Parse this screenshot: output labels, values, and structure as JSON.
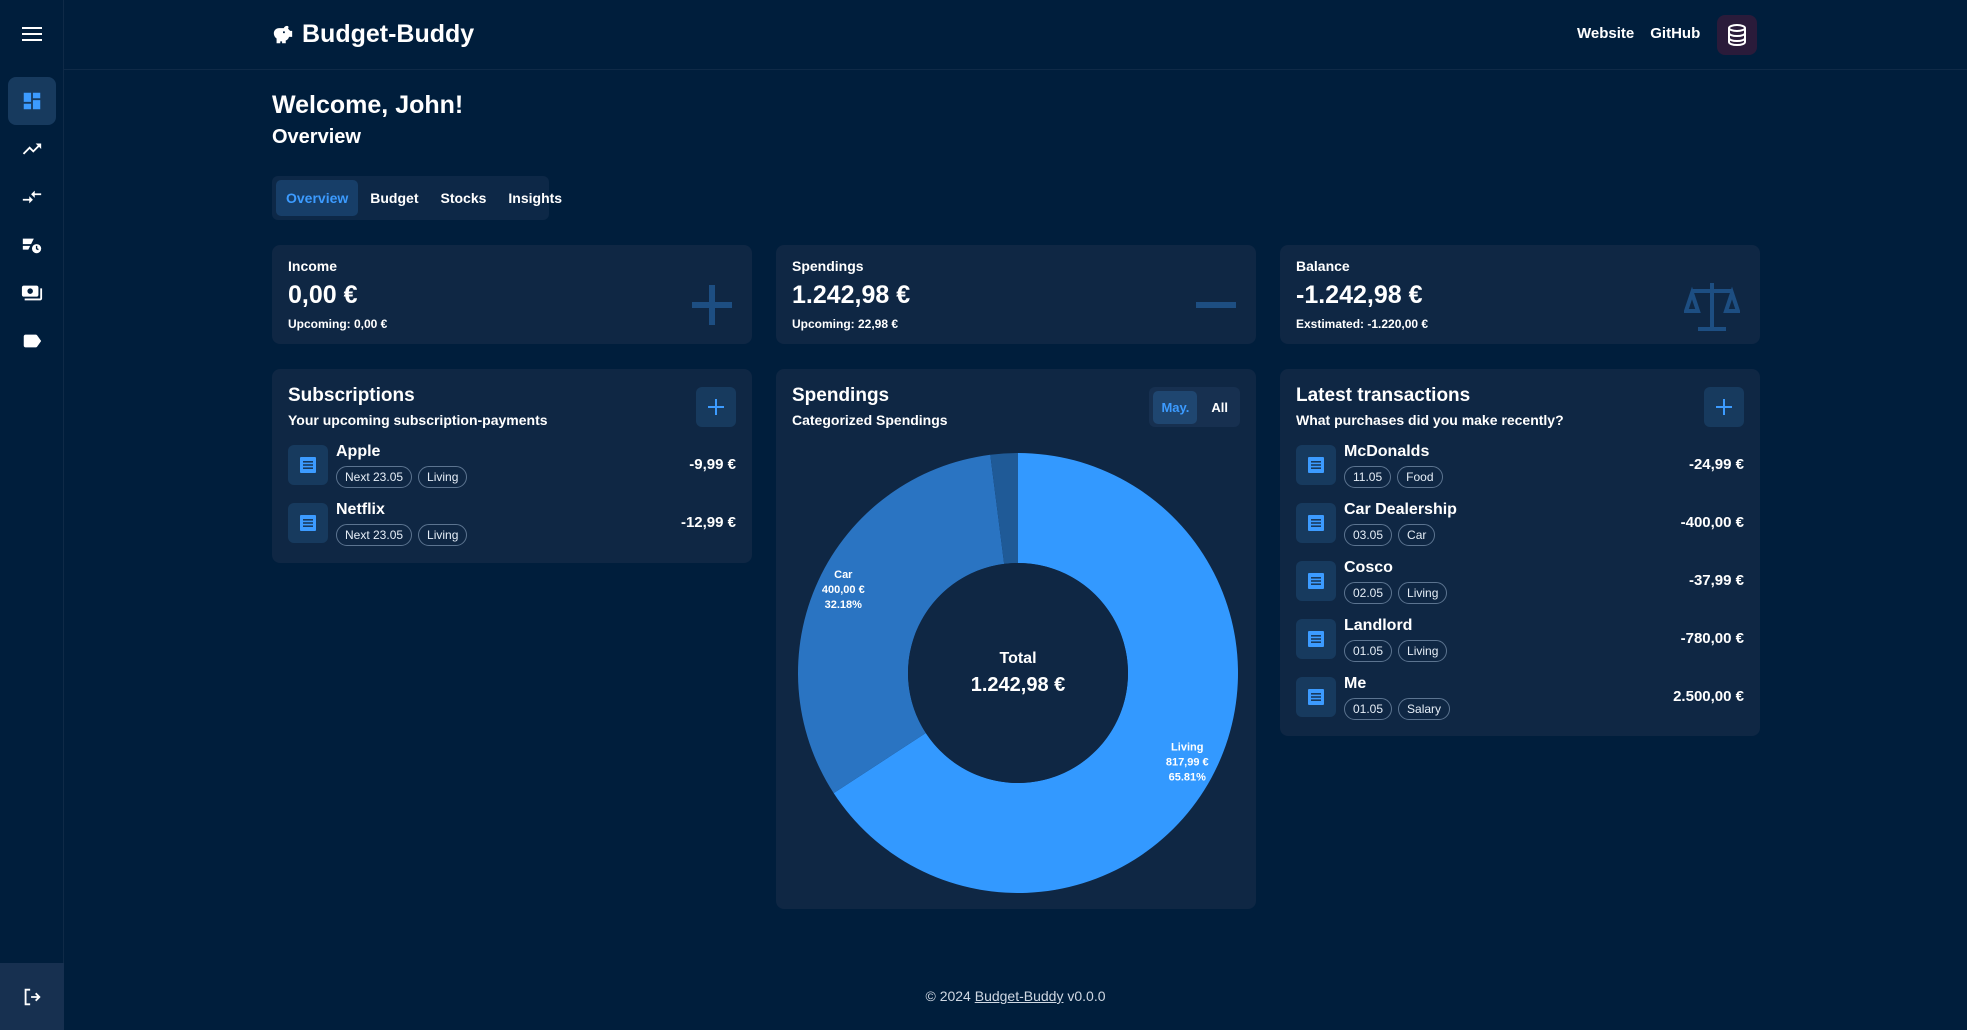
{
  "app": {
    "title": "Budget-Buddy"
  },
  "header": {
    "links": [
      "Website",
      "GitHub"
    ]
  },
  "sidebar": {
    "items": [
      {
        "name": "dashboard",
        "icon": "dashboard-icon"
      },
      {
        "name": "stocks",
        "icon": "trending-up-icon"
      },
      {
        "name": "transfers",
        "icon": "compare-arrows-icon"
      },
      {
        "name": "subscriptions",
        "icon": "scheduled-payment-icon"
      },
      {
        "name": "payments",
        "icon": "payments-icon"
      },
      {
        "name": "categories",
        "icon": "label-icon"
      }
    ],
    "logout_icon": "logout-icon"
  },
  "page": {
    "welcome": "Welcome, John!",
    "subtitle": "Overview"
  },
  "tabs": [
    {
      "label": "Overview",
      "active": true
    },
    {
      "label": "Budget",
      "active": false
    },
    {
      "label": "Stocks",
      "active": false
    },
    {
      "label": "Insights",
      "active": false
    }
  ],
  "stats": {
    "income": {
      "label": "Income",
      "value": "0,00 €",
      "sub": "Upcoming: 0,00 €"
    },
    "spendings": {
      "label": "Spendings",
      "value": "1.242,98 €",
      "sub": "Upcoming: 22,98 €"
    },
    "balance": {
      "label": "Balance",
      "value": "-1.242,98 €",
      "sub": "Exstimated: -1.220,00 €"
    }
  },
  "subscriptions": {
    "title": "Subscriptions",
    "subtitle": "Your upcoming subscription-payments",
    "items": [
      {
        "name": "Apple",
        "next": "Next 23.05",
        "category": "Living",
        "amount": "-9,99 €"
      },
      {
        "name": "Netflix",
        "next": "Next 23.05",
        "category": "Living",
        "amount": "-12,99 €"
      }
    ]
  },
  "spendings_card": {
    "title": "Spendings",
    "subtitle": "Categorized Spendings",
    "toggles": [
      {
        "label": "May.",
        "active": true
      },
      {
        "label": "All",
        "active": false
      }
    ],
    "center_label": "Total",
    "center_value": "1.242,98 €",
    "colors": {
      "Living": "#3399ff",
      "Car": "#2a74c2",
      "Other": "#1f5a97"
    }
  },
  "chart_data": {
    "type": "pie",
    "categories": [
      "Living",
      "Car",
      "Food"
    ],
    "values": [
      817.99,
      400.0,
      24.99
    ],
    "labels": [
      {
        "name": "Living",
        "value": "817,99 €",
        "percent": "65.81%"
      },
      {
        "name": "Car",
        "value": "400,00 €",
        "percent": "32.18%"
      }
    ]
  },
  "transactions": {
    "title": "Latest transactions",
    "subtitle": "What purchases did you make recently?",
    "items": [
      {
        "name": "McDonalds",
        "date": "11.05",
        "category": "Food",
        "amount": "-24,99 €"
      },
      {
        "name": "Car Dealership",
        "date": "03.05",
        "category": "Car",
        "amount": "-400,00 €"
      },
      {
        "name": "Cosco",
        "date": "02.05",
        "category": "Living",
        "amount": "-37,99 €"
      },
      {
        "name": "Landlord",
        "date": "01.05",
        "category": "Living",
        "amount": "-780,00 €"
      },
      {
        "name": "Me",
        "date": "01.05",
        "category": "Salary",
        "amount": "2.500,00 €"
      }
    ]
  },
  "footer": {
    "prefix": "© 2024 ",
    "link": "Budget-Buddy",
    "suffix": " v0.0.0"
  }
}
